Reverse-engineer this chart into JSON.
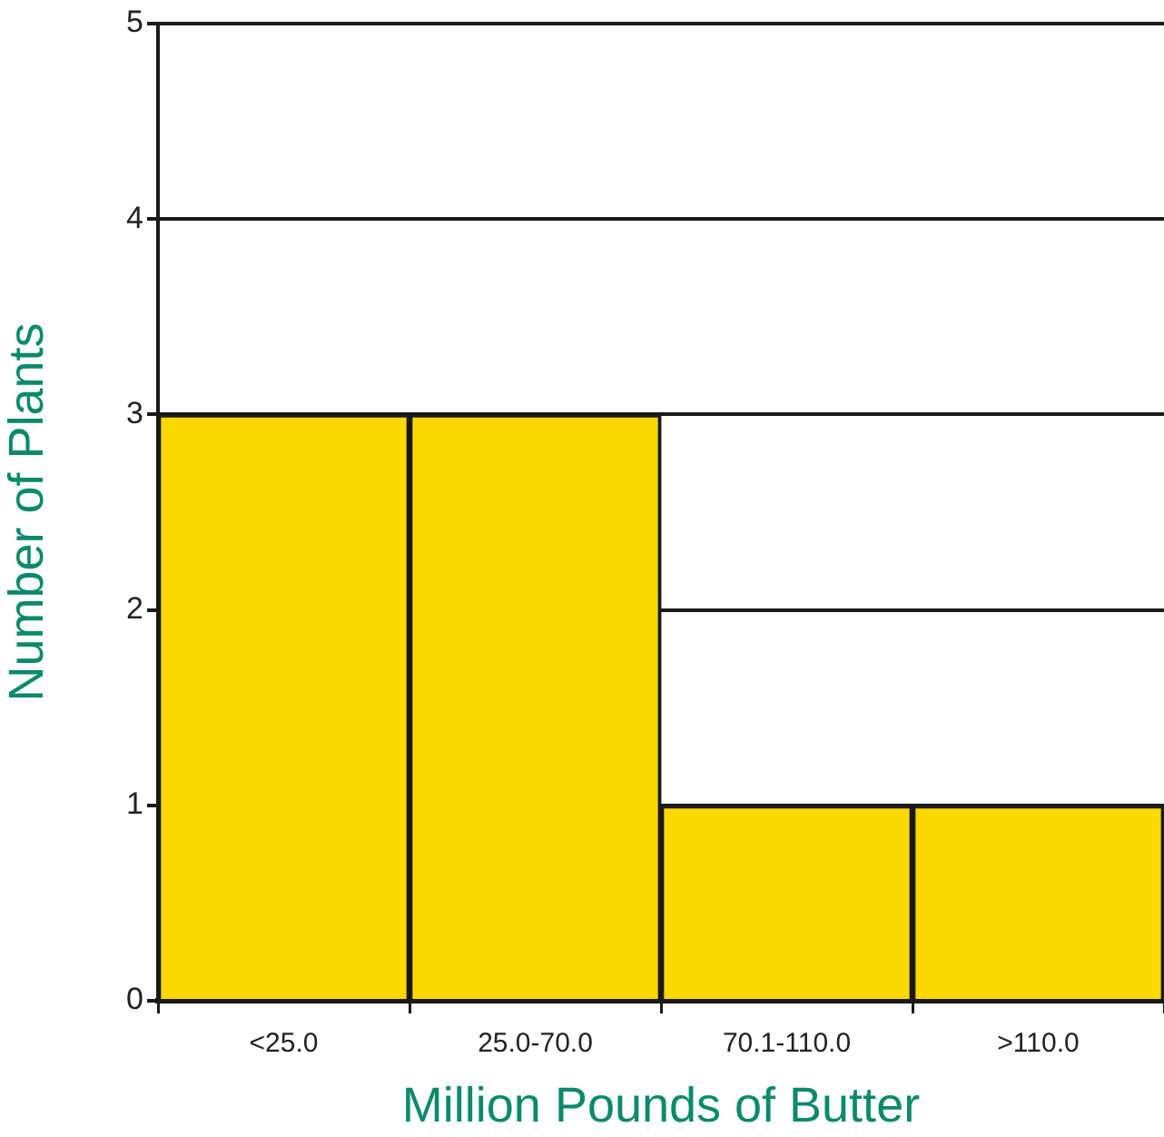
{
  "chart_data": {
    "type": "bar",
    "categories": [
      "<25.0",
      "25.0-70.0",
      "70.1-110.0",
      ">110.0"
    ],
    "values": [
      3,
      3,
      1,
      1
    ],
    "color": "#fcd800",
    "xlabel": "Million Pounds of Butter",
    "ylabel": "Number of Plants",
    "ylim": [
      0,
      5
    ],
    "yticks": [
      0,
      1,
      2,
      3,
      4,
      5
    ],
    "grid": "y"
  }
}
